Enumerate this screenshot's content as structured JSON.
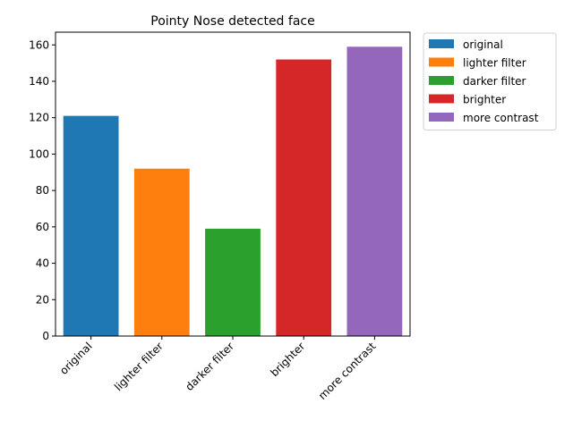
{
  "chart_data": {
    "type": "bar",
    "title": "Pointy Nose detected face",
    "xlabel": "",
    "ylabel": "",
    "categories": [
      "original",
      "lighter filter",
      "darker filter",
      "brighter",
      "more contrast"
    ],
    "values": [
      121,
      92,
      59,
      152,
      159
    ],
    "colors": [
      "#1f77b4",
      "#ff7f0e",
      "#2ca02c",
      "#d62728",
      "#9467bd"
    ],
    "ylim": [
      0,
      167
    ],
    "yticks": [
      0,
      20,
      40,
      60,
      80,
      100,
      120,
      140,
      160
    ],
    "grid": false,
    "legend_position": "outside-top-right",
    "legend": [
      "original",
      "lighter filter",
      "darker filter",
      "brighter",
      "more contrast"
    ]
  }
}
